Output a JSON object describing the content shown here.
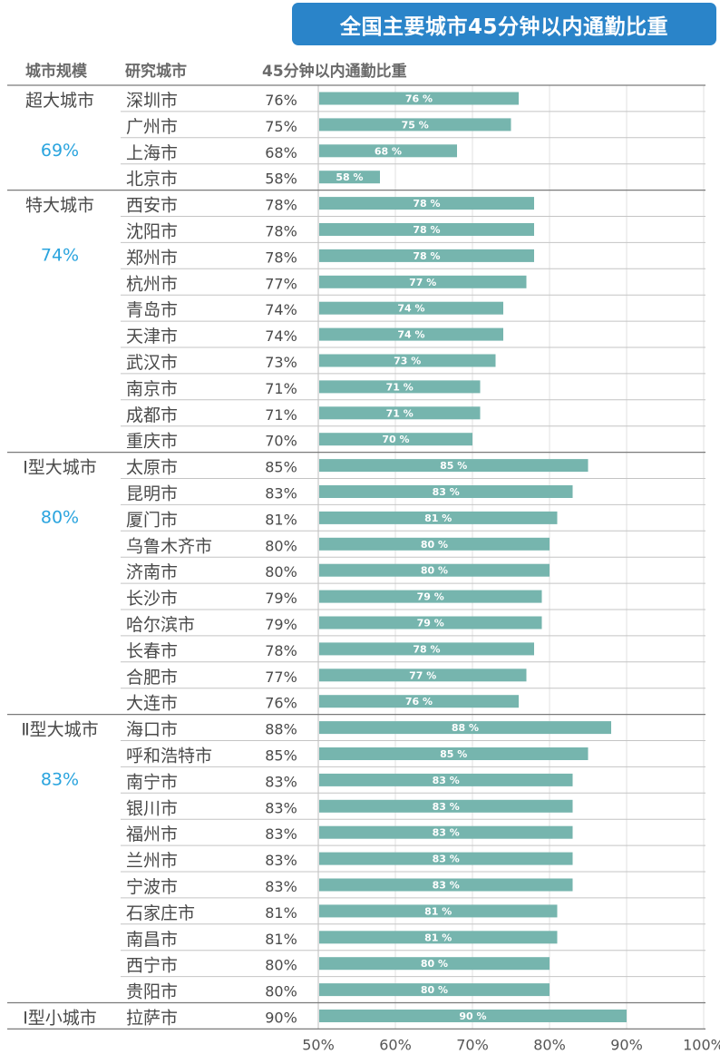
{
  "chart_data": {
    "type": "bar",
    "orientation": "horizontal",
    "title": "全国主要城市45分钟以内通勤比重",
    "columns": [
      "城市规模",
      "研究城市",
      "45分钟以内通勤比重"
    ],
    "groups": [
      {
        "name": "超大城市",
        "avg": "69%",
        "rows": [
          {
            "city": "深圳市",
            "value": 76
          },
          {
            "city": "广州市",
            "value": 75
          },
          {
            "city": "上海市",
            "value": 68
          },
          {
            "city": "北京市",
            "value": 58
          }
        ]
      },
      {
        "name": "特大城市",
        "avg": "74%",
        "rows": [
          {
            "city": "西安市",
            "value": 78
          },
          {
            "city": "沈阳市",
            "value": 78
          },
          {
            "city": "郑州市",
            "value": 78
          },
          {
            "city": "杭州市",
            "value": 77
          },
          {
            "city": "青岛市",
            "value": 74
          },
          {
            "city": "天津市",
            "value": 74
          },
          {
            "city": "武汉市",
            "value": 73
          },
          {
            "city": "南京市",
            "value": 71
          },
          {
            "city": "成都市",
            "value": 71
          },
          {
            "city": "重庆市",
            "value": 70
          }
        ]
      },
      {
        "name": "Ⅰ型大城市",
        "avg": "80%",
        "rows": [
          {
            "city": "太原市",
            "value": 85
          },
          {
            "city": "昆明市",
            "value": 83
          },
          {
            "city": "厦门市",
            "value": 81
          },
          {
            "city": "乌鲁木齐市",
            "value": 80
          },
          {
            "city": "济南市",
            "value": 80
          },
          {
            "city": "长沙市",
            "value": 79
          },
          {
            "city": "哈尔滨市",
            "value": 79
          },
          {
            "city": "长春市",
            "value": 78
          },
          {
            "city": "合肥市",
            "value": 77
          },
          {
            "city": "大连市",
            "value": 76
          }
        ]
      },
      {
        "name": "Ⅱ型大城市",
        "avg": "83%",
        "rows": [
          {
            "city": "海口市",
            "value": 88
          },
          {
            "city": "呼和浩特市",
            "value": 85
          },
          {
            "city": "南宁市",
            "value": 83
          },
          {
            "city": "银川市",
            "value": 83
          },
          {
            "city": "福州市",
            "value": 83
          },
          {
            "city": "兰州市",
            "value": 83
          },
          {
            "city": "宁波市",
            "value": 83
          },
          {
            "city": "石家庄市",
            "value": 81
          },
          {
            "city": "南昌市",
            "value": 81
          },
          {
            "city": "西宁市",
            "value": 80
          },
          {
            "city": "贵阳市",
            "value": 80
          }
        ]
      },
      {
        "name": "Ⅰ型小城市",
        "avg": "",
        "rows": [
          {
            "city": "拉萨市",
            "value": 90
          }
        ]
      }
    ],
    "xlim": [
      50,
      100
    ],
    "xticks": [
      "50%",
      "60%",
      "70%",
      "80%",
      "90%",
      "100%"
    ],
    "xtick_values": [
      50,
      60,
      70,
      80,
      90,
      100
    ],
    "grid": true,
    "colors": {
      "bar": "#76b5ae",
      "avg": "#2aa4de",
      "title_bg": "#2a84c9"
    }
  }
}
